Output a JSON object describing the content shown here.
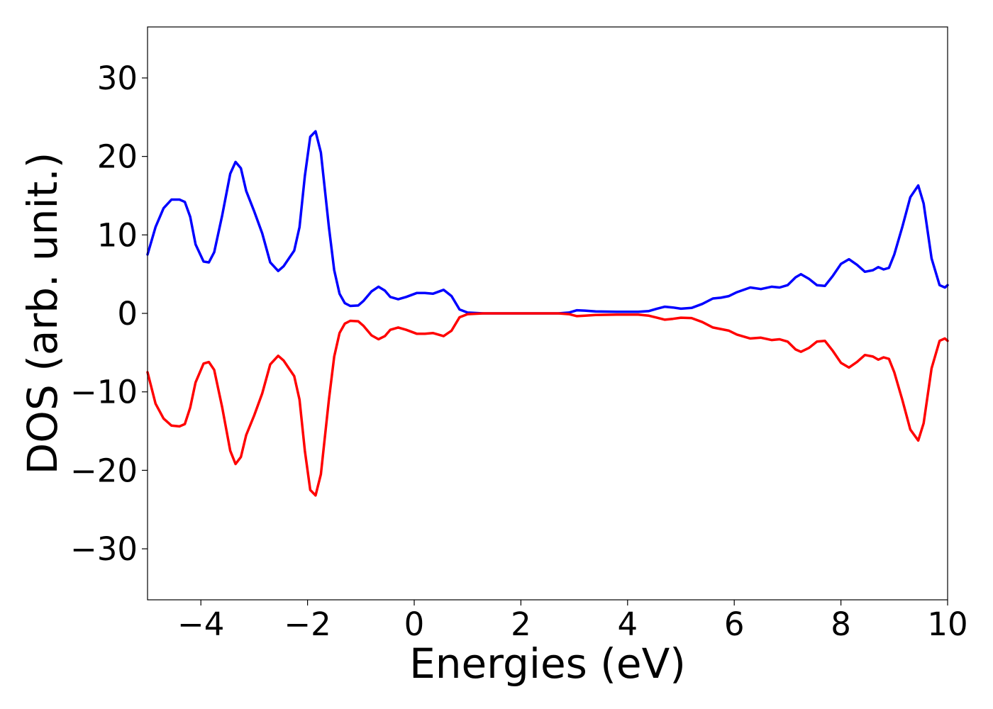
{
  "chart_data": {
    "type": "line",
    "xlabel": "Energies (eV)",
    "ylabel": "DOS (arb. unit.)",
    "xlim": [
      -5,
      10
    ],
    "ylim": [
      -36.5,
      36.5
    ],
    "xticks": [
      -4,
      -2,
      0,
      2,
      4,
      6,
      8,
      10
    ],
    "yticks": [
      -30,
      -20,
      -10,
      0,
      10,
      20,
      30
    ],
    "grid": false,
    "series": [
      {
        "color": "#0000ff",
        "points": [
          [
            -5.0,
            7.5
          ],
          [
            -4.85,
            11.0
          ],
          [
            -4.7,
            13.4
          ],
          [
            -4.55,
            14.5
          ],
          [
            -4.4,
            14.5
          ],
          [
            -4.3,
            14.2
          ],
          [
            -4.2,
            12.3
          ],
          [
            -4.1,
            8.8
          ],
          [
            -3.95,
            6.6
          ],
          [
            -3.85,
            6.5
          ],
          [
            -3.75,
            7.8
          ],
          [
            -3.6,
            12.5
          ],
          [
            -3.45,
            17.8
          ],
          [
            -3.35,
            19.3
          ],
          [
            -3.25,
            18.5
          ],
          [
            -3.15,
            15.6
          ],
          [
            -3.0,
            13.0
          ],
          [
            -2.85,
            10.2
          ],
          [
            -2.7,
            6.5
          ],
          [
            -2.55,
            5.4
          ],
          [
            -2.45,
            6.0
          ],
          [
            -2.35,
            7.0
          ],
          [
            -2.25,
            8.0
          ],
          [
            -2.15,
            11.0
          ],
          [
            -2.05,
            17.5
          ],
          [
            -1.95,
            22.5
          ],
          [
            -1.85,
            23.2
          ],
          [
            -1.75,
            20.5
          ],
          [
            -1.6,
            11.0
          ],
          [
            -1.5,
            5.5
          ],
          [
            -1.4,
            2.5
          ],
          [
            -1.3,
            1.3
          ],
          [
            -1.2,
            0.95
          ],
          [
            -1.05,
            1.0
          ],
          [
            -0.95,
            1.6
          ],
          [
            -0.8,
            2.8
          ],
          [
            -0.67,
            3.4
          ],
          [
            -0.55,
            2.9
          ],
          [
            -0.45,
            2.1
          ],
          [
            -0.3,
            1.8
          ],
          [
            -0.15,
            2.1
          ],
          [
            0.05,
            2.6
          ],
          [
            0.2,
            2.6
          ],
          [
            0.35,
            2.5
          ],
          [
            0.55,
            3.0
          ],
          [
            0.7,
            2.2
          ],
          [
            0.85,
            0.5
          ],
          [
            1.0,
            0.1
          ],
          [
            1.3,
            0.0
          ],
          [
            2.0,
            0.0
          ],
          [
            2.7,
            0.0
          ],
          [
            2.9,
            0.1
          ],
          [
            3.05,
            0.4
          ],
          [
            3.2,
            0.35
          ],
          [
            3.4,
            0.25
          ],
          [
            3.8,
            0.2
          ],
          [
            4.2,
            0.2
          ],
          [
            4.4,
            0.3
          ],
          [
            4.55,
            0.6
          ],
          [
            4.7,
            0.85
          ],
          [
            4.85,
            0.75
          ],
          [
            5.0,
            0.6
          ],
          [
            5.2,
            0.7
          ],
          [
            5.4,
            1.2
          ],
          [
            5.6,
            1.9
          ],
          [
            5.75,
            2.0
          ],
          [
            5.9,
            2.2
          ],
          [
            6.05,
            2.7
          ],
          [
            6.3,
            3.3
          ],
          [
            6.5,
            3.1
          ],
          [
            6.7,
            3.4
          ],
          [
            6.85,
            3.3
          ],
          [
            7.0,
            3.6
          ],
          [
            7.15,
            4.6
          ],
          [
            7.25,
            5.0
          ],
          [
            7.4,
            4.4
          ],
          [
            7.55,
            3.6
          ],
          [
            7.7,
            3.5
          ],
          [
            7.85,
            4.8
          ],
          [
            8.0,
            6.3
          ],
          [
            8.15,
            6.9
          ],
          [
            8.3,
            6.2
          ],
          [
            8.45,
            5.3
          ],
          [
            8.6,
            5.5
          ],
          [
            8.7,
            5.9
          ],
          [
            8.8,
            5.6
          ],
          [
            8.9,
            5.8
          ],
          [
            9.0,
            7.5
          ],
          [
            9.15,
            11.0
          ],
          [
            9.3,
            14.8
          ],
          [
            9.45,
            16.3
          ],
          [
            9.55,
            14.0
          ],
          [
            9.7,
            7.0
          ],
          [
            9.85,
            3.6
          ],
          [
            9.95,
            3.3
          ],
          [
            10.0,
            3.6
          ]
        ]
      },
      {
        "color": "#ff0000",
        "points": [
          [
            -5.0,
            -7.5
          ],
          [
            -4.85,
            -11.5
          ],
          [
            -4.7,
            -13.4
          ],
          [
            -4.55,
            -14.3
          ],
          [
            -4.4,
            -14.4
          ],
          [
            -4.3,
            -14.1
          ],
          [
            -4.2,
            -12.0
          ],
          [
            -4.1,
            -8.8
          ],
          [
            -3.95,
            -6.4
          ],
          [
            -3.85,
            -6.2
          ],
          [
            -3.75,
            -7.2
          ],
          [
            -3.6,
            -12.0
          ],
          [
            -3.45,
            -17.5
          ],
          [
            -3.35,
            -19.2
          ],
          [
            -3.25,
            -18.3
          ],
          [
            -3.15,
            -15.5
          ],
          [
            -3.0,
            -13.0
          ],
          [
            -2.85,
            -10.2
          ],
          [
            -2.7,
            -6.5
          ],
          [
            -2.55,
            -5.4
          ],
          [
            -2.45,
            -6.0
          ],
          [
            -2.35,
            -7.0
          ],
          [
            -2.25,
            -8.0
          ],
          [
            -2.15,
            -11.0
          ],
          [
            -2.05,
            -17.5
          ],
          [
            -1.95,
            -22.5
          ],
          [
            -1.85,
            -23.2
          ],
          [
            -1.75,
            -20.5
          ],
          [
            -1.6,
            -11.0
          ],
          [
            -1.5,
            -5.5
          ],
          [
            -1.4,
            -2.5
          ],
          [
            -1.3,
            -1.3
          ],
          [
            -1.2,
            -0.95
          ],
          [
            -1.05,
            -1.0
          ],
          [
            -0.95,
            -1.6
          ],
          [
            -0.8,
            -2.8
          ],
          [
            -0.67,
            -3.3
          ],
          [
            -0.55,
            -2.9
          ],
          [
            -0.45,
            -2.1
          ],
          [
            -0.3,
            -1.8
          ],
          [
            -0.15,
            -2.1
          ],
          [
            0.05,
            -2.6
          ],
          [
            0.2,
            -2.6
          ],
          [
            0.35,
            -2.5
          ],
          [
            0.55,
            -2.9
          ],
          [
            0.7,
            -2.2
          ],
          [
            0.85,
            -0.5
          ],
          [
            1.0,
            -0.1
          ],
          [
            1.3,
            0.0
          ],
          [
            2.0,
            0.0
          ],
          [
            2.7,
            0.0
          ],
          [
            2.9,
            -0.1
          ],
          [
            3.05,
            -0.35
          ],
          [
            3.2,
            -0.3
          ],
          [
            3.4,
            -0.2
          ],
          [
            3.8,
            -0.15
          ],
          [
            4.2,
            -0.15
          ],
          [
            4.4,
            -0.3
          ],
          [
            4.55,
            -0.55
          ],
          [
            4.7,
            -0.8
          ],
          [
            4.85,
            -0.7
          ],
          [
            5.0,
            -0.55
          ],
          [
            5.2,
            -0.6
          ],
          [
            5.4,
            -1.1
          ],
          [
            5.6,
            -1.8
          ],
          [
            5.75,
            -2.0
          ],
          [
            5.9,
            -2.2
          ],
          [
            6.05,
            -2.7
          ],
          [
            6.3,
            -3.2
          ],
          [
            6.5,
            -3.1
          ],
          [
            6.7,
            -3.4
          ],
          [
            6.85,
            -3.3
          ],
          [
            7.0,
            -3.6
          ],
          [
            7.15,
            -4.6
          ],
          [
            7.25,
            -4.9
          ],
          [
            7.4,
            -4.4
          ],
          [
            7.55,
            -3.6
          ],
          [
            7.7,
            -3.5
          ],
          [
            7.85,
            -4.8
          ],
          [
            8.0,
            -6.3
          ],
          [
            8.15,
            -6.9
          ],
          [
            8.3,
            -6.2
          ],
          [
            8.45,
            -5.3
          ],
          [
            8.6,
            -5.5
          ],
          [
            8.7,
            -5.9
          ],
          [
            8.8,
            -5.6
          ],
          [
            8.9,
            -5.8
          ],
          [
            9.0,
            -7.5
          ],
          [
            9.15,
            -11.0
          ],
          [
            9.3,
            -14.8
          ],
          [
            9.45,
            -16.2
          ],
          [
            9.55,
            -14.0
          ],
          [
            9.7,
            -7.0
          ],
          [
            9.85,
            -3.5
          ],
          [
            9.95,
            -3.2
          ],
          [
            10.0,
            -3.5
          ]
        ]
      }
    ]
  }
}
